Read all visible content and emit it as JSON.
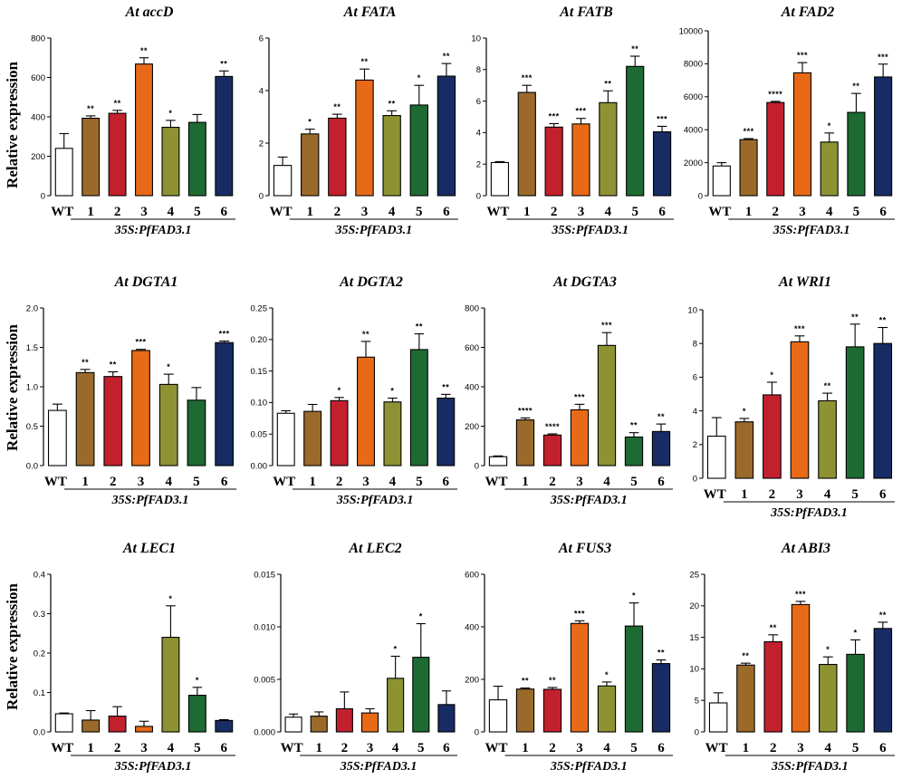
{
  "figure": {
    "ylabel": "Relative expression",
    "colors": {
      "WT": "#ffffff",
      "1": "#9b6a2a",
      "2": "#c3202e",
      "3": "#e86a17",
      "4": "#8e9232",
      "5": "#1d6b32",
      "6": "#172c64"
    }
  },
  "chart_data": [
    {
      "type": "bar",
      "title": "At accD",
      "categories": [
        "WT",
        "1",
        "2",
        "3",
        "4",
        "5",
        "6"
      ],
      "group_label": "35S:PfFAD3.1",
      "ylim": [
        0,
        800
      ],
      "yticks": [
        0,
        200,
        400,
        600,
        800
      ],
      "tick_labels": [
        "0",
        "200",
        "400",
        "600",
        "800"
      ],
      "values": [
        240,
        393,
        418,
        668,
        347,
        372,
        605
      ],
      "errors": [
        75,
        12,
        15,
        32,
        35,
        40,
        28
      ],
      "significance": [
        "",
        "**",
        "**",
        "**",
        "*",
        "",
        "**"
      ]
    },
    {
      "type": "bar",
      "title": "At FATA",
      "categories": [
        "WT",
        "1",
        "2",
        "3",
        "4",
        "5",
        "6"
      ],
      "group_label": "35S:PfFAD3.1",
      "ylim": [
        0,
        6
      ],
      "yticks": [
        0,
        2,
        4,
        6
      ],
      "tick_labels": [
        "0",
        "2",
        "4",
        "6"
      ],
      "values": [
        1.15,
        2.35,
        2.95,
        4.4,
        3.05,
        3.45,
        4.55
      ],
      "errors": [
        0.32,
        0.18,
        0.15,
        0.42,
        0.18,
        0.75,
        0.48
      ],
      "significance": [
        "",
        "*",
        "**",
        "**",
        "**",
        "*",
        "**"
      ]
    },
    {
      "type": "bar",
      "title": "At FATB",
      "categories": [
        "WT",
        "1",
        "2",
        "3",
        "4",
        "5",
        "6"
      ],
      "group_label": "35S:PfFAD3.1",
      "ylim": [
        0,
        10
      ],
      "yticks": [
        0,
        2,
        4,
        6,
        8,
        10
      ],
      "tick_labels": [
        "0",
        "2",
        "4",
        "6",
        "8",
        "10"
      ],
      "values": [
        2.1,
        6.55,
        4.35,
        4.55,
        5.9,
        8.2,
        4.05
      ],
      "errors": [
        0.06,
        0.45,
        0.22,
        0.35,
        0.75,
        0.65,
        0.35
      ],
      "significance": [
        "",
        "***",
        "***",
        "***",
        "**",
        "**",
        "***"
      ]
    },
    {
      "type": "bar",
      "title": "At FAD2",
      "categories": [
        "WT",
        "1",
        "2",
        "3",
        "4",
        "5",
        "6"
      ],
      "group_label": "35S:PfFAD3.1",
      "ylim": [
        0,
        10000
      ],
      "yticks": [
        0,
        2000,
        4000,
        6000,
        8000,
        10000
      ],
      "tick_labels": [
        "0",
        "2000",
        "4000",
        "6000",
        "8000",
        "10000"
      ],
      "values": [
        1800,
        3400,
        5650,
        7450,
        3250,
        5050,
        7200
      ],
      "errors": [
        200,
        60,
        70,
        620,
        550,
        1150,
        780
      ],
      "significance": [
        "",
        "***",
        "****",
        "***",
        "*",
        "**",
        "***"
      ]
    },
    {
      "type": "bar",
      "title": "At DGTA1",
      "categories": [
        "WT",
        "1",
        "2",
        "3",
        "4",
        "5",
        "6"
      ],
      "group_label": "35S:PfFAD3.1",
      "ylim": [
        0,
        2.0
      ],
      "yticks": [
        0,
        0.5,
        1.0,
        1.5,
        2.0
      ],
      "tick_labels": [
        "0.0",
        "0.5",
        "1.0",
        "1.5",
        "2.0"
      ],
      "values": [
        0.7,
        1.18,
        1.13,
        1.46,
        1.03,
        0.83,
        1.56
      ],
      "errors": [
        0.08,
        0.04,
        0.06,
        0.015,
        0.13,
        0.16,
        0.02
      ],
      "significance": [
        "",
        "**",
        "**",
        "***",
        "*",
        "",
        "***"
      ]
    },
    {
      "type": "bar",
      "title": "At DGTA2",
      "categories": [
        "WT",
        "1",
        "2",
        "3",
        "4",
        "5",
        "6"
      ],
      "group_label": "35S:PfFAD3.1",
      "ylim": [
        0,
        0.25
      ],
      "yticks": [
        0,
        0.05,
        0.1,
        0.15,
        0.2,
        0.25
      ],
      "tick_labels": [
        "0.00",
        "0.05",
        "0.10",
        "0.15",
        "0.20",
        "0.25"
      ],
      "values": [
        0.083,
        0.086,
        0.103,
        0.172,
        0.101,
        0.184,
        0.107
      ],
      "errors": [
        0.004,
        0.011,
        0.005,
        0.025,
        0.006,
        0.025,
        0.006
      ],
      "significance": [
        "",
        "",
        "*",
        "**",
        "*",
        "**",
        "**"
      ]
    },
    {
      "type": "bar",
      "title": "At DGTA3",
      "categories": [
        "WT",
        "1",
        "2",
        "3",
        "4",
        "5",
        "6"
      ],
      "group_label": "35S:PfFAD3.1",
      "ylim": [
        0,
        800
      ],
      "yticks": [
        0,
        200,
        400,
        600,
        800
      ],
      "tick_labels": [
        "0",
        "200",
        "400",
        "600",
        "800"
      ],
      "values": [
        45,
        232,
        155,
        283,
        610,
        145,
        173
      ],
      "errors": [
        4,
        10,
        6,
        28,
        65,
        22,
        38
      ],
      "significance": [
        "",
        "****",
        "****",
        "***",
        "***",
        "**",
        "**"
      ]
    },
    {
      "type": "bar",
      "title": "At WRI1",
      "categories": [
        "WT",
        "1",
        "2",
        "3",
        "4",
        "5",
        "6"
      ],
      "group_label": "35S:PfFAD3.1",
      "ylim": [
        0,
        10
      ],
      "yticks": [
        0,
        2,
        4,
        6,
        8,
        10
      ],
      "tick_labels": [
        "0",
        "2",
        "4",
        "6",
        "8",
        "10"
      ],
      "values": [
        2.5,
        3.35,
        4.95,
        8.1,
        4.6,
        7.8,
        8.0
      ],
      "errors": [
        1.1,
        0.2,
        0.75,
        0.35,
        0.45,
        1.35,
        0.95
      ],
      "significance": [
        "",
        "*",
        "*",
        "***",
        "**",
        "**",
        "**"
      ]
    },
    {
      "type": "bar",
      "title": "At LEC1",
      "categories": [
        "WT",
        "1",
        "2",
        "3",
        "4",
        "5",
        "6"
      ],
      "group_label": "35S:PfFAD3.1",
      "ylim": [
        0,
        0.4
      ],
      "yticks": [
        0,
        0.1,
        0.2,
        0.3,
        0.4
      ],
      "tick_labels": [
        "0.0",
        "0.1",
        "0.2",
        "0.3",
        "0.4"
      ],
      "values": [
        0.046,
        0.03,
        0.04,
        0.014,
        0.24,
        0.093,
        0.029
      ],
      "errors": [
        0.002,
        0.024,
        0.024,
        0.013,
        0.08,
        0.02,
        0.002
      ],
      "significance": [
        "",
        "",
        "",
        "",
        "*",
        "*",
        ""
      ]
    },
    {
      "type": "bar",
      "title": "At LEC2",
      "categories": [
        "WT",
        "1",
        "2",
        "3",
        "4",
        "5",
        "6"
      ],
      "group_label": "35S:PfFAD3.1",
      "ylim": [
        0,
        0.015
      ],
      "yticks": [
        0,
        0.005,
        0.01,
        0.015
      ],
      "tick_labels": [
        "0.000",
        "0.005",
        "0.010",
        "0.015"
      ],
      "values": [
        0.0014,
        0.0015,
        0.0022,
        0.0018,
        0.0051,
        0.0071,
        0.0026
      ],
      "errors": [
        0.0003,
        0.0004,
        0.0016,
        0.0004,
        0.0021,
        0.0032,
        0.0013
      ],
      "significance": [
        "",
        "",
        "",
        "",
        "*",
        "*",
        ""
      ]
    },
    {
      "type": "bar",
      "title": "At FUS3",
      "categories": [
        "WT",
        "1",
        "2",
        "3",
        "4",
        "5",
        "6"
      ],
      "group_label": "35S:PfFAD3.1",
      "ylim": [
        0,
        600
      ],
      "yticks": [
        0,
        200,
        400,
        600
      ],
      "tick_labels": [
        "0",
        "200",
        "400",
        "600"
      ],
      "values": [
        122,
        163,
        162,
        413,
        175,
        403,
        260
      ],
      "errors": [
        52,
        4,
        7,
        10,
        15,
        88,
        14
      ],
      "significance": [
        "",
        "**",
        "**",
        "***",
        "*",
        "*",
        "**"
      ]
    },
    {
      "type": "bar",
      "title": "At ABI3",
      "categories": [
        "WT",
        "1",
        "2",
        "3",
        "4",
        "5",
        "6"
      ],
      "group_label": "35S:PfFAD3.1",
      "ylim": [
        0,
        25
      ],
      "yticks": [
        0,
        5,
        10,
        15,
        20,
        25
      ],
      "tick_labels": [
        "0",
        "5",
        "10",
        "15",
        "20",
        "25"
      ],
      "values": [
        4.6,
        10.6,
        14.3,
        20.2,
        10.7,
        12.3,
        16.4
      ],
      "errors": [
        1.6,
        0.3,
        1.1,
        0.5,
        1.2,
        2.3,
        1.0
      ],
      "significance": [
        "",
        "**",
        "**",
        "***",
        "*",
        "*",
        "**"
      ]
    }
  ]
}
